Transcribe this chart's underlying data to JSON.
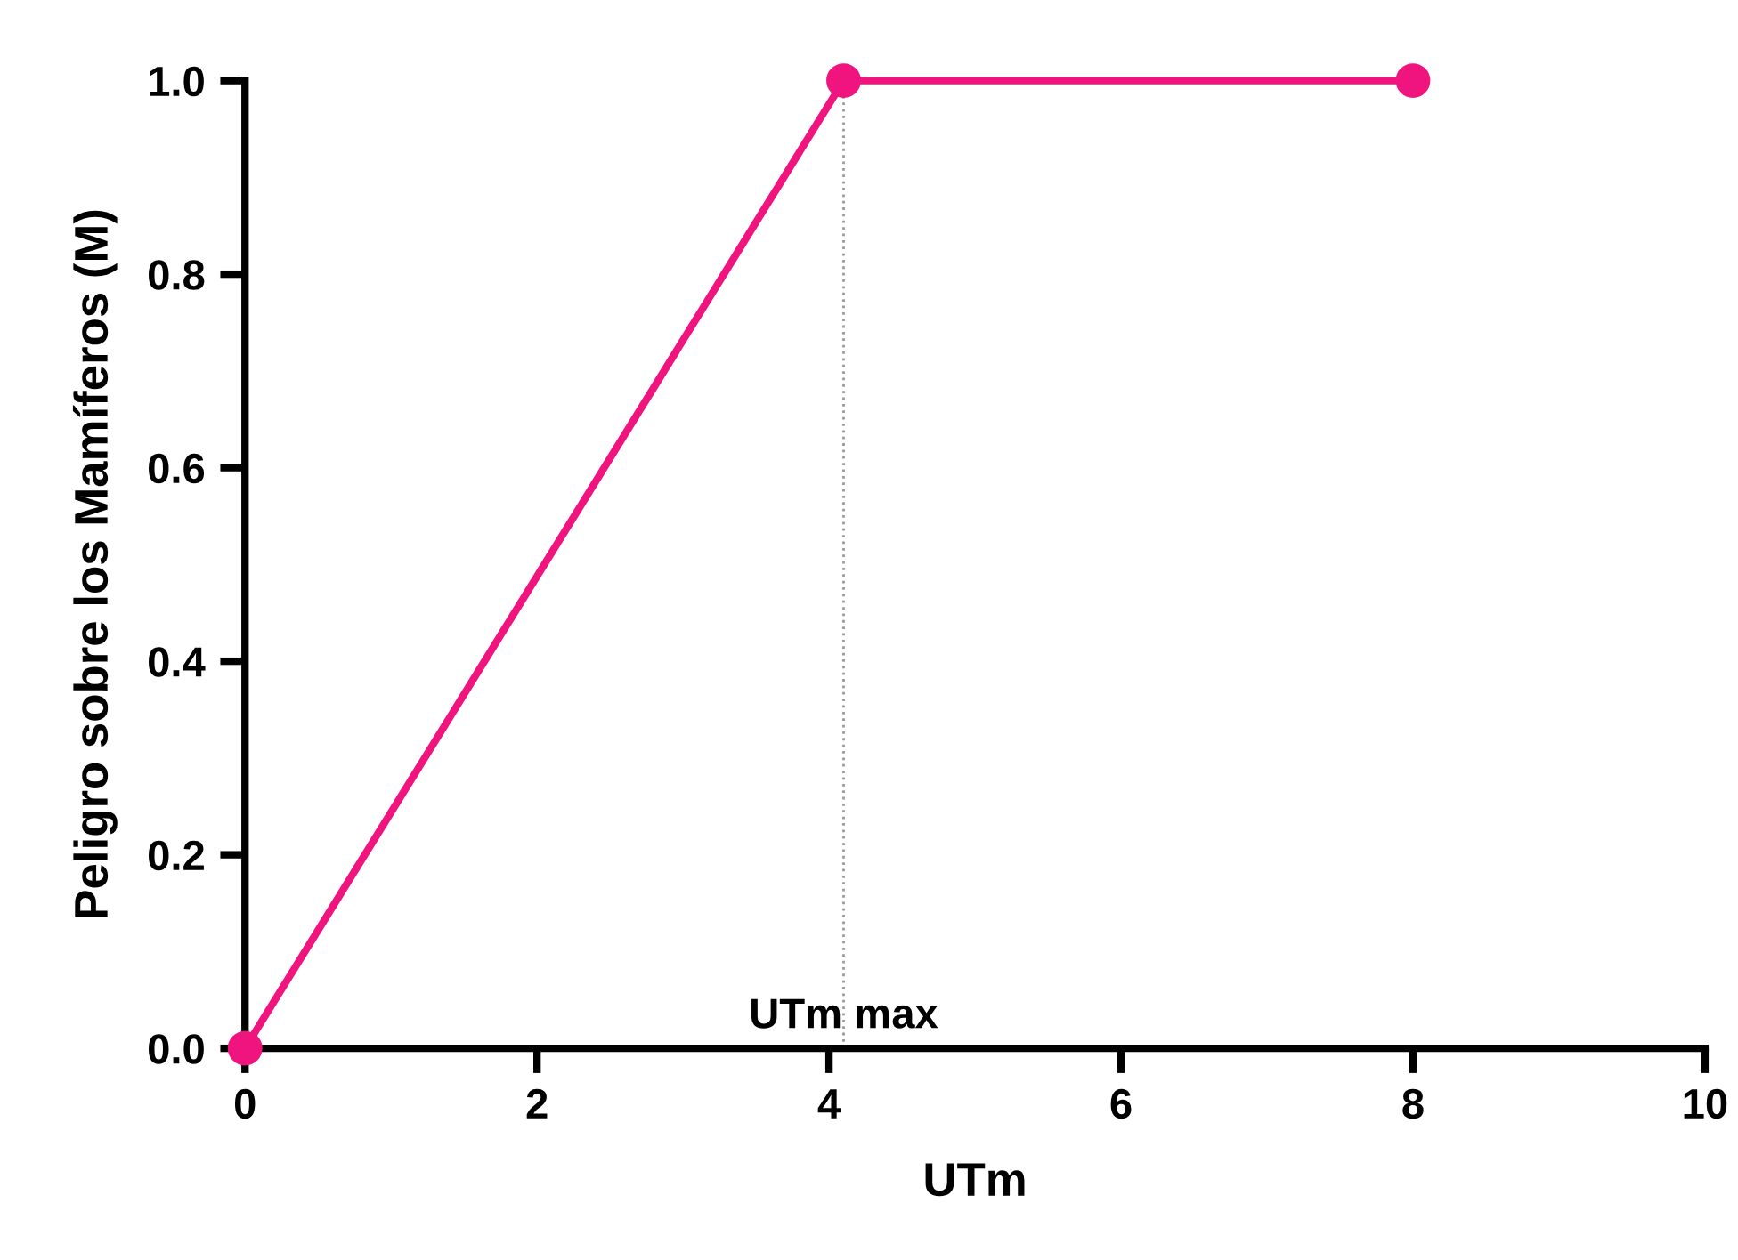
{
  "chart_data": {
    "type": "line",
    "xlabel": "UTm",
    "ylabel": "Peligro sobre los Mamíferos (M)",
    "series": [
      {
        "color": "#f0147f",
        "x": [
          0,
          4.1,
          8
        ],
        "values": [
          0,
          1,
          1
        ]
      }
    ],
    "xlim": [
      0,
      10
    ],
    "xticks": [
      0,
      2,
      4,
      6,
      8,
      10
    ],
    "ylim": [
      0,
      1
    ],
    "yticks": [
      {
        "value": 0,
        "label": "0.0"
      },
      {
        "value": 0.2,
        "label": "0.2"
      },
      {
        "value": 0.4,
        "label": "0.4"
      },
      {
        "value": 0.6,
        "label": "0.6"
      },
      {
        "value": 0.8,
        "label": "0.8"
      },
      {
        "value": 1,
        "label": "1.0"
      }
    ],
    "ref_lines": [
      {
        "axis": "x",
        "value": 4.1,
        "label": "UTm max",
        "color": "#999999",
        "line_style": "dotted"
      }
    ],
    "marker": "circle",
    "line_style": "solid",
    "grid": false,
    "legend": false
  }
}
